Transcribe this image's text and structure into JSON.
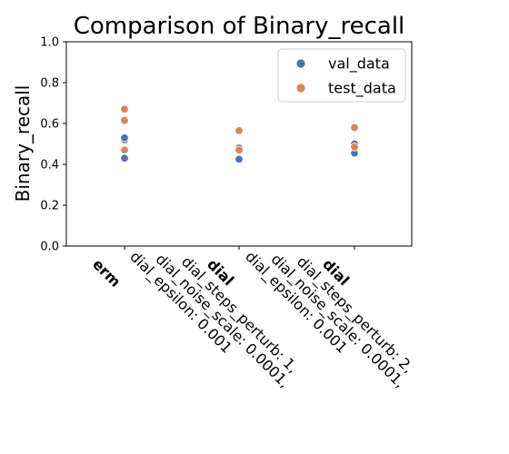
{
  "chart_data": {
    "type": "scatter",
    "title": "Comparison of Binary_recall",
    "xlabel": "",
    "ylabel": "Binary_recall",
    "ylim": [
      0.0,
      1.0
    ],
    "yticks": [
      "0.0",
      "0.2",
      "0.4",
      "0.6",
      "0.8",
      "1.0"
    ],
    "grid": false,
    "legend_position": "top-right",
    "categories": [
      {
        "name": "erm",
        "details": []
      },
      {
        "name": "dial",
        "details": [
          "dial_steps_perturb: 1,",
          "dial_noise_scale: 0.0001,",
          "dial_epsilon: 0.001"
        ]
      },
      {
        "name": "dial",
        "details": [
          "dial_steps_perturb: 2,",
          "dial_noise_scale: 0.0001,",
          "dial_epsilon: 0.001"
        ]
      }
    ],
    "series": [
      {
        "name": "val_data",
        "color": "#4c72b0",
        "points": [
          [
            0,
            0.43
          ],
          [
            0,
            0.52
          ],
          [
            0,
            0.53
          ],
          [
            1,
            0.425
          ],
          [
            1,
            0.475
          ],
          [
            1,
            0.48
          ],
          [
            2,
            0.455
          ],
          [
            2,
            0.49
          ],
          [
            2,
            0.5
          ]
        ]
      },
      {
        "name": "test_data",
        "color": "#dd8452",
        "points": [
          [
            0,
            0.47
          ],
          [
            0,
            0.615
          ],
          [
            0,
            0.67
          ],
          [
            1,
            0.47
          ],
          [
            1,
            0.565
          ],
          [
            2,
            0.485
          ],
          [
            2,
            0.58
          ]
        ]
      }
    ]
  }
}
